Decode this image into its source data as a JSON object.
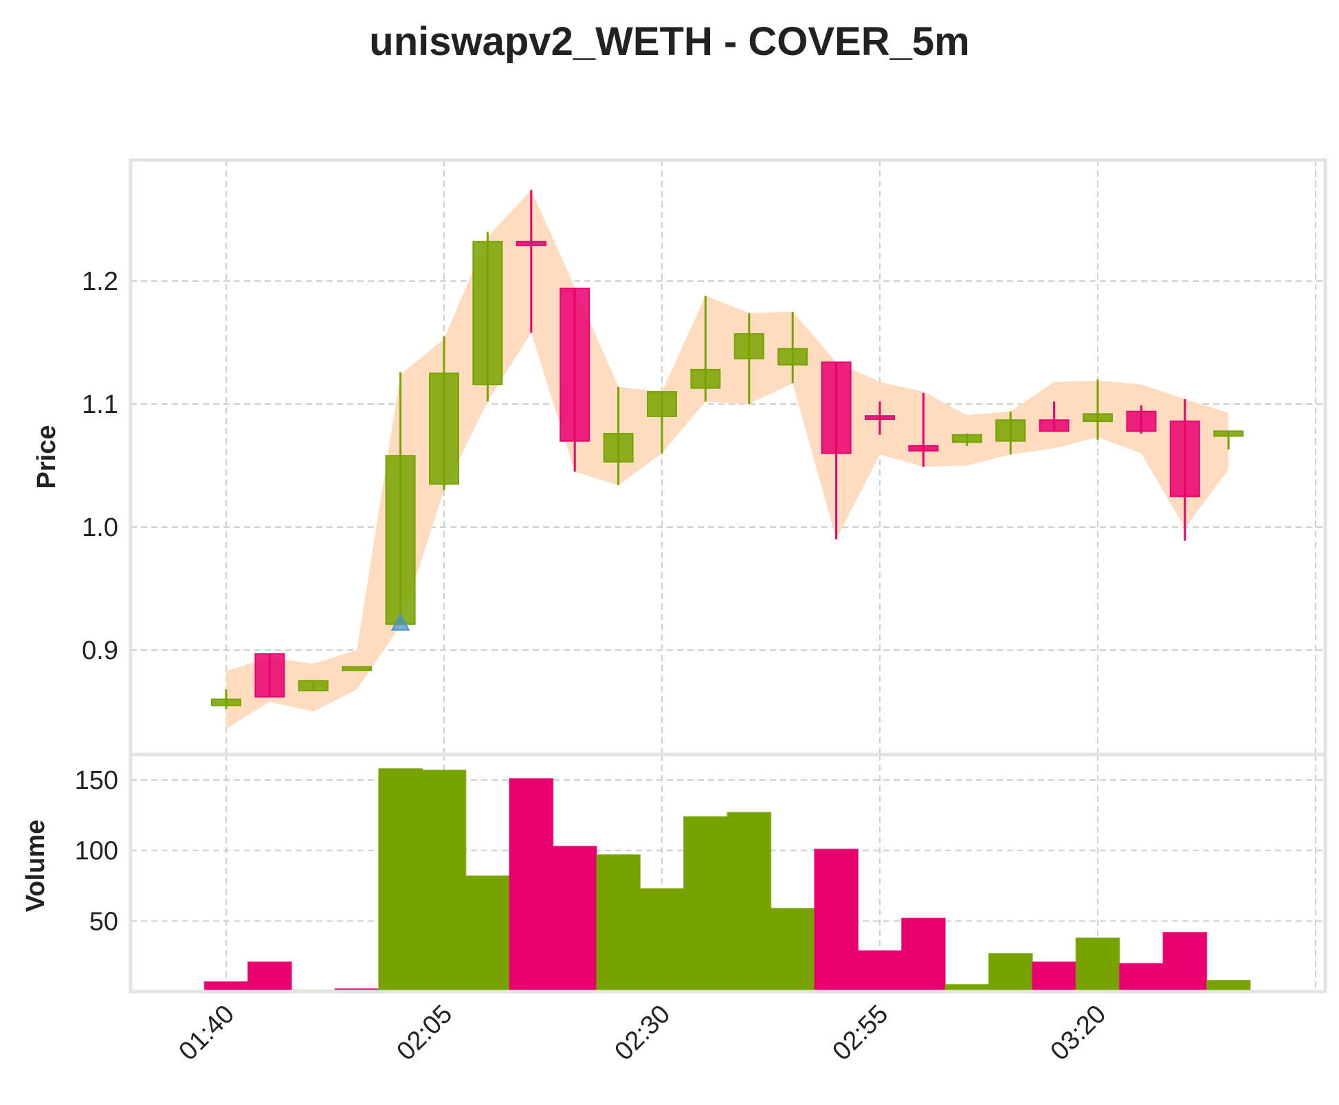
{
  "chart_data": {
    "type": "candlestick",
    "title": "uniswapv2_WETH - COVER_5m",
    "price_ylabel": "Price",
    "volume_ylabel": "Volume",
    "x_tick_labels": [
      "01:40",
      "02:05",
      "02:30",
      "02:55",
      "03:20"
    ],
    "price_ticks": [
      "0.9",
      "1.0",
      "1.1",
      "1.2"
    ],
    "volume_ticks": [
      "50",
      "100",
      "150"
    ],
    "price_ylim": [
      0.81,
      1.29
    ],
    "volume_ylim": [
      0,
      168
    ],
    "grid": true,
    "colors": {
      "up": "#76a300",
      "down": "#e8006f",
      "band": "#ffdcc0",
      "marker": "#4a90c2"
    },
    "candles": [
      {
        "time": "01:40",
        "open": 0.855,
        "high": 0.868,
        "low": 0.852,
        "close": 0.86
      },
      {
        "time": "01:45",
        "open": 0.897,
        "high": 0.897,
        "low": 0.862,
        "close": 0.862
      },
      {
        "time": "01:50",
        "open": 0.867,
        "high": 0.875,
        "low": 0.867,
        "close": 0.875
      },
      {
        "time": "01:55",
        "open": 0.885,
        "high": 0.885,
        "low": 0.885,
        "close": 0.885
      },
      {
        "time": "02:00",
        "open": 0.921,
        "high": 1.126,
        "low": 0.921,
        "close": 1.058
      },
      {
        "time": "02:05",
        "open": 1.035,
        "high": 1.155,
        "low": 1.03,
        "close": 1.125
      },
      {
        "time": "02:10",
        "open": 1.116,
        "high": 1.24,
        "low": 1.102,
        "close": 1.232
      },
      {
        "time": "02:15",
        "open": 1.232,
        "high": 1.274,
        "low": 1.158,
        "close": 1.229
      },
      {
        "time": "02:20",
        "open": 1.194,
        "high": 1.194,
        "low": 1.045,
        "close": 1.07
      },
      {
        "time": "02:25",
        "open": 1.053,
        "high": 1.114,
        "low": 1.034,
        "close": 1.076
      },
      {
        "time": "02:30",
        "open": 1.09,
        "high": 1.11,
        "low": 1.06,
        "close": 1.11
      },
      {
        "time": "02:35",
        "open": 1.113,
        "high": 1.188,
        "low": 1.102,
        "close": 1.128
      },
      {
        "time": "02:40",
        "open": 1.137,
        "high": 1.174,
        "low": 1.1,
        "close": 1.157
      },
      {
        "time": "02:45",
        "open": 1.132,
        "high": 1.175,
        "low": 1.117,
        "close": 1.145
      },
      {
        "time": "02:50",
        "open": 1.134,
        "high": 1.134,
        "low": 0.99,
        "close": 1.06
      },
      {
        "time": "02:55",
        "open": 1.09,
        "high": 1.102,
        "low": 1.075,
        "close": 1.088
      },
      {
        "time": "03:00",
        "open": 1.066,
        "high": 1.109,
        "low": 1.049,
        "close": 1.062
      },
      {
        "time": "03:05",
        "open": 1.069,
        "high": 1.076,
        "low": 1.066,
        "close": 1.075
      },
      {
        "time": "03:10",
        "open": 1.07,
        "high": 1.094,
        "low": 1.059,
        "close": 1.087
      },
      {
        "time": "03:15",
        "open": 1.087,
        "high": 1.102,
        "low": 1.078,
        "close": 1.078
      },
      {
        "time": "03:20",
        "open": 1.086,
        "high": 1.12,
        "low": 1.071,
        "close": 1.092
      },
      {
        "time": "03:25",
        "open": 1.094,
        "high": 1.099,
        "low": 1.076,
        "close": 1.078
      },
      {
        "time": "03:30",
        "open": 1.086,
        "high": 1.104,
        "low": 0.989,
        "close": 1.025
      },
      {
        "time": "03:35",
        "open": 1.074,
        "high": 1.078,
        "low": 1.063,
        "close": 1.078
      }
    ],
    "band": {
      "upper": [
        0.883,
        0.894,
        0.889,
        0.9,
        1.124,
        1.153,
        1.236,
        1.274,
        1.195,
        1.114,
        1.11,
        1.188,
        1.174,
        1.175,
        1.134,
        1.118,
        1.11,
        1.091,
        1.094,
        1.118,
        1.119,
        1.116,
        1.104,
        1.093
      ],
      "lower": [
        0.836,
        0.858,
        0.85,
        0.868,
        0.92,
        1.03,
        1.102,
        1.158,
        1.045,
        1.034,
        1.06,
        1.102,
        1.1,
        1.117,
        0.99,
        1.059,
        1.049,
        1.05,
        1.059,
        1.064,
        1.073,
        1.06,
        0.999,
        1.047
      ]
    },
    "volume": [
      {
        "time": "01:40",
        "value": 7,
        "dir": "down"
      },
      {
        "time": "01:45",
        "value": 21,
        "dir": "down"
      },
      {
        "time": "01:50",
        "value": 1,
        "dir": "up"
      },
      {
        "time": "01:55",
        "value": 2,
        "dir": "down"
      },
      {
        "time": "02:00",
        "value": 158,
        "dir": "up"
      },
      {
        "time": "02:05",
        "value": 157,
        "dir": "up"
      },
      {
        "time": "02:10",
        "value": 82,
        "dir": "up"
      },
      {
        "time": "02:15",
        "value": 151,
        "dir": "down"
      },
      {
        "time": "02:20",
        "value": 103,
        "dir": "down"
      },
      {
        "time": "02:25",
        "value": 97,
        "dir": "up"
      },
      {
        "time": "02:30",
        "value": 73,
        "dir": "up"
      },
      {
        "time": "02:35",
        "value": 124,
        "dir": "up"
      },
      {
        "time": "02:40",
        "value": 127,
        "dir": "up"
      },
      {
        "time": "02:45",
        "value": 59,
        "dir": "up"
      },
      {
        "time": "02:50",
        "value": 101,
        "dir": "down"
      },
      {
        "time": "02:55",
        "value": 29,
        "dir": "down"
      },
      {
        "time": "03:00",
        "value": 52,
        "dir": "down"
      },
      {
        "time": "03:05",
        "value": 5,
        "dir": "up"
      },
      {
        "time": "03:10",
        "value": 27,
        "dir": "up"
      },
      {
        "time": "03:15",
        "value": 21,
        "dir": "down"
      },
      {
        "time": "03:20",
        "value": 38,
        "dir": "up"
      },
      {
        "time": "03:25",
        "value": 20,
        "dir": "down"
      },
      {
        "time": "03:30",
        "value": 42,
        "dir": "down"
      },
      {
        "time": "03:35",
        "value": 8,
        "dir": "up"
      }
    ],
    "markers": [
      {
        "time": "02:00",
        "price": 0.922,
        "shape": "triangle-up"
      }
    ]
  }
}
